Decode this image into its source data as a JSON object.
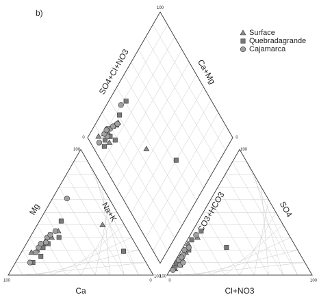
{
  "chart_data": {
    "type": "piper",
    "title": "b)",
    "axes": {
      "cation_left": "Mg",
      "cation_right": "Na+K",
      "cation_bottom": "Ca",
      "anion_left": "CO3+HCO3",
      "anion_right": "SO4",
      "anion_bottom": "Cl+NO3",
      "diamond_left": "SO4+Cl+NO3",
      "diamond_right": "Ca+Mg"
    },
    "range": [
      0,
      100
    ],
    "grid": true,
    "legend": "upper right",
    "series": [
      {
        "name": "Surface",
        "marker": "triangle",
        "color": "#8c8c8c",
        "Ca": [
          70,
          62,
          55,
          15,
          48,
          60,
          75
        ],
        "Mg": [
          20,
          25,
          30,
          40,
          35,
          28,
          18
        ],
        "SO4": [
          10,
          18,
          25,
          30,
          8,
          14,
          5
        ],
        "Cl": [
          3,
          4,
          2,
          6,
          5,
          2,
          3
        ]
      },
      {
        "name": "Quebradagrande",
        "marker": "square",
        "color": "#7a7a7a",
        "Ca": [
          42,
          55,
          60,
          70,
          78,
          11,
          50,
          65
        ],
        "Mg": [
          43,
          32,
          25,
          15,
          10,
          19,
          30,
          22
        ],
        "SO4": [
          20,
          28,
          12,
          6,
          35,
          22,
          15,
          9
        ],
        "Cl": [
          5,
          3,
          4,
          2,
          6,
          30,
          3,
          2
        ]
      },
      {
        "name": "Cajamarca",
        "marker": "circle",
        "color": "#a0a0a0",
        "Ca": [
          29,
          61,
          58,
          55,
          68,
          80,
          65,
          72,
          50
        ],
        "Mg": [
          61,
          26,
          30,
          32,
          22,
          10,
          25,
          18,
          35
        ],
        "SO4": [
          32,
          12,
          16,
          20,
          8,
          4,
          14,
          10,
          22
        ],
        "Cl": [
          4,
          2,
          3,
          2,
          5,
          2,
          3,
          6,
          4
        ]
      }
    ]
  }
}
